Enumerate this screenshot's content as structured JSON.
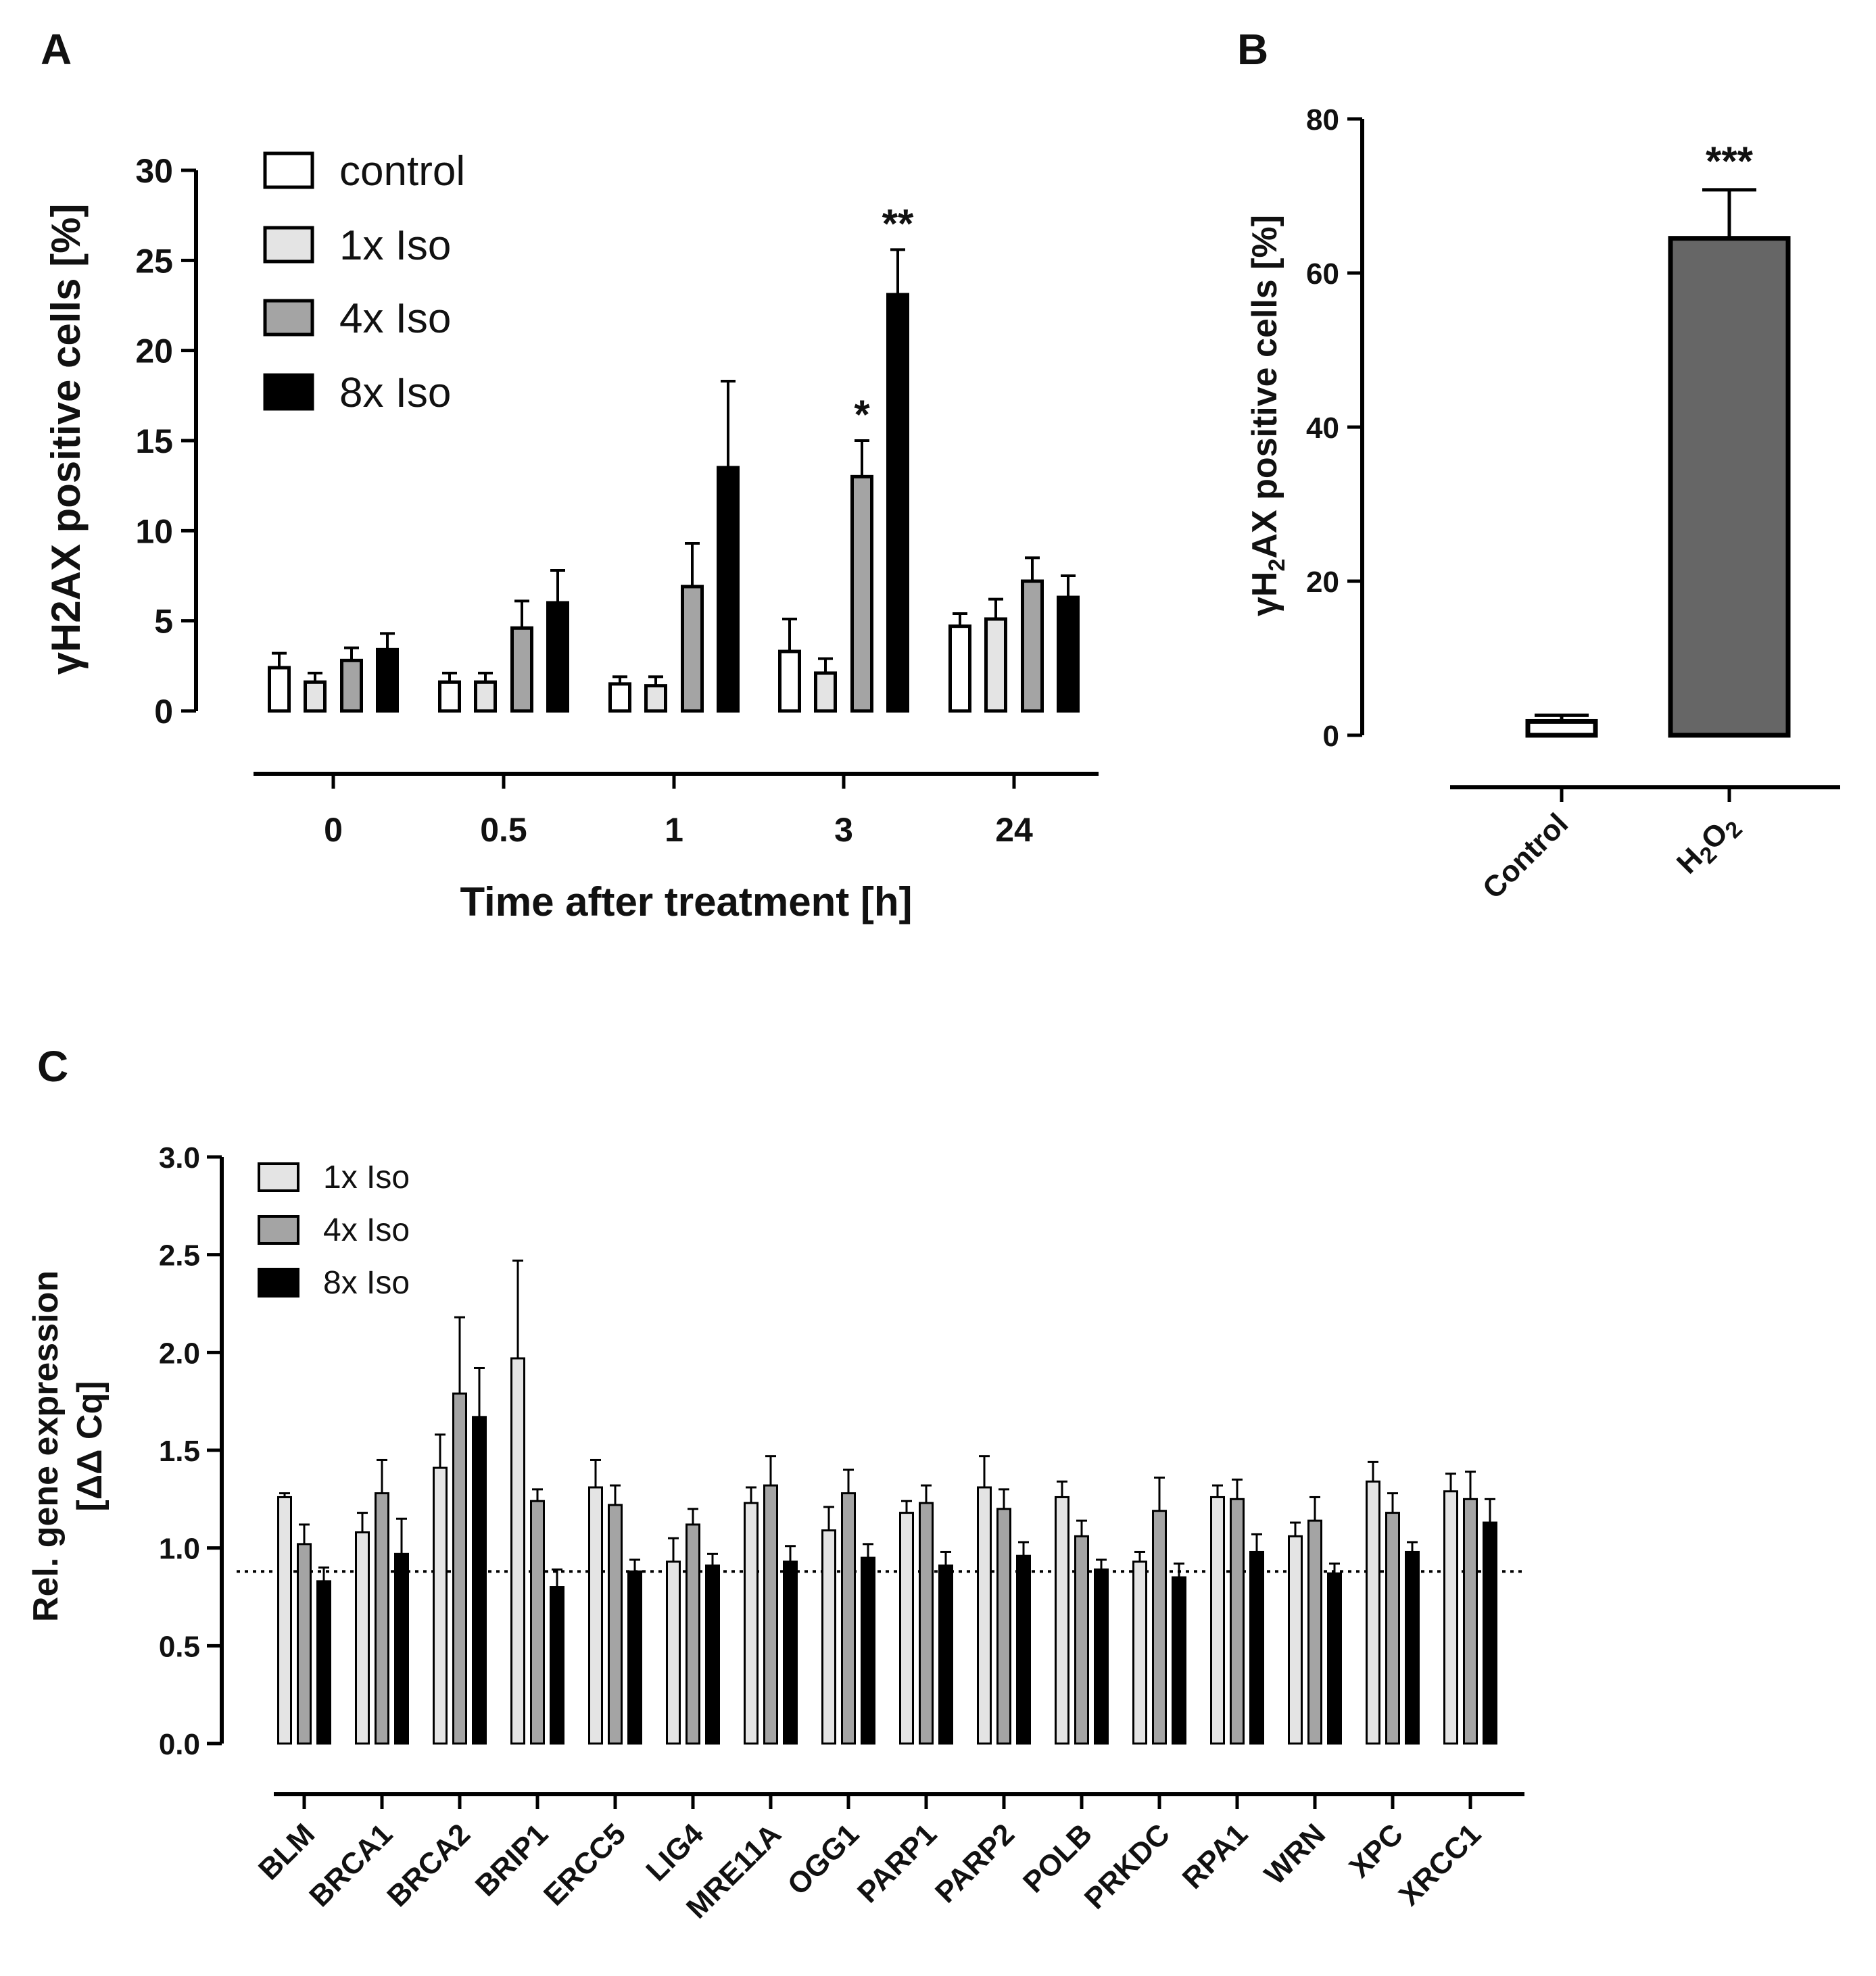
{
  "colors": {
    "control": "#ffffff",
    "iso1": "#e4e4e4",
    "iso4": "#a4a4a4",
    "iso8": "#000000",
    "h2o2": "#666666",
    "edge": "#000000"
  },
  "panels": {
    "A": {
      "letter": "A"
    },
    "B": {
      "letter": "B"
    },
    "C": {
      "letter": "C"
    }
  },
  "chart_data": [
    {
      "panel": "A",
      "type": "bar",
      "ylabel": "γH2AX positive cells [%]",
      "xlabel": "Time after treatment [h]",
      "categories": [
        "0",
        "0.5",
        "1",
        "3",
        "24"
      ],
      "ylim": [
        0,
        30
      ],
      "yticks": [
        "0",
        "5",
        "10",
        "15",
        "20",
        "25",
        "30"
      ],
      "legend_position": "top-left",
      "series": [
        {
          "name": "control",
          "color_key": "control",
          "values": [
            2.4,
            1.6,
            1.5,
            3.3,
            4.7
          ],
          "errors": [
            0.8,
            0.5,
            0.4,
            1.8,
            0.7
          ]
        },
        {
          "name": "1x Iso",
          "color_key": "iso1",
          "values": [
            1.6,
            1.6,
            1.4,
            2.1,
            5.1
          ],
          "errors": [
            0.5,
            0.5,
            0.5,
            0.8,
            1.1
          ]
        },
        {
          "name": "4x Iso",
          "color_key": "iso4",
          "values": [
            2.8,
            4.6,
            6.9,
            13.0,
            7.2
          ],
          "errors": [
            0.7,
            1.5,
            2.4,
            2.0,
            1.3
          ]
        },
        {
          "name": "8x Iso",
          "color_key": "iso8",
          "values": [
            3.4,
            6.0,
            13.5,
            23.1,
            6.3
          ],
          "errors": [
            0.9,
            1.8,
            4.8,
            2.5,
            1.2
          ]
        }
      ],
      "annotations": [
        {
          "text": "*",
          "category": "3",
          "series": "4x Iso"
        },
        {
          "text": "**",
          "category": "3",
          "series": "8x Iso"
        }
      ]
    },
    {
      "panel": "B",
      "type": "bar",
      "ylabel": "γH2AX positive cells [%]",
      "categories": [
        "Control",
        "H2O2"
      ],
      "ylim": [
        0,
        80
      ],
      "yticks": [
        "0",
        "20",
        "40",
        "60",
        "80"
      ],
      "series": [
        {
          "name": "γH2AX",
          "values": [
            1.8,
            64.5
          ],
          "errors": [
            0.8,
            6.3
          ]
        }
      ],
      "annotations": [
        {
          "text": "***",
          "category": "H2O2"
        }
      ]
    },
    {
      "panel": "C",
      "type": "bar",
      "ylabel": "Rel. gene expression",
      "ylabel2": "[ΔΔ Cq]",
      "categories": [
        "BLM",
        "BRCA1",
        "BRCA2",
        "BRIP1",
        "ERCC5",
        "LIG4",
        "MRE11A",
        "OGG1",
        "PARP1",
        "PARP2",
        "POLB",
        "PRKDC",
        "RPA1",
        "WRN",
        "XPC",
        "XRCC1"
      ],
      "ylim": [
        0,
        3.0
      ],
      "yticks": [
        "0.0",
        "0.5",
        "1.0",
        "1.5",
        "2.0",
        "2.5",
        "3.0"
      ],
      "reference_line": 0.88,
      "legend_position": "top-left",
      "series": [
        {
          "name": "1x Iso",
          "color_key": "iso1",
          "values": [
            1.26,
            1.08,
            1.41,
            1.97,
            1.31,
            0.93,
            1.23,
            1.09,
            1.18,
            1.31,
            1.26,
            0.93,
            1.26,
            1.06,
            1.34,
            1.29
          ],
          "errors": [
            0.02,
            0.1,
            0.17,
            0.5,
            0.14,
            0.12,
            0.08,
            0.12,
            0.06,
            0.16,
            0.08,
            0.05,
            0.06,
            0.07,
            0.1,
            0.09
          ]
        },
        {
          "name": "4x Iso",
          "color_key": "iso4",
          "values": [
            1.02,
            1.28,
            1.79,
            1.24,
            1.22,
            1.12,
            1.32,
            1.28,
            1.23,
            1.2,
            1.06,
            1.19,
            1.25,
            1.14,
            1.18,
            1.25
          ]
        },
        {
          "name": "8x Iso",
          "color_key": "iso8",
          "values": [
            0.83,
            0.97,
            1.67,
            0.8,
            0.88,
            0.91,
            0.93,
            0.95,
            0.91,
            0.96,
            0.89,
            0.85,
            0.98,
            0.87,
            0.98,
            1.13
          ]
        }
      ],
      "errors_4x": [
        0.1,
        0.17,
        0.39,
        0.06,
        0.1,
        0.08,
        0.15,
        0.12,
        0.09,
        0.1,
        0.08,
        0.17,
        0.1,
        0.12,
        0.1,
        0.14
      ],
      "errors_8x": [
        0.07,
        0.18,
        0.25,
        0.09,
        0.06,
        0.06,
        0.08,
        0.07,
        0.07,
        0.07,
        0.05,
        0.07,
        0.09,
        0.05,
        0.05,
        0.12
      ]
    }
  ]
}
